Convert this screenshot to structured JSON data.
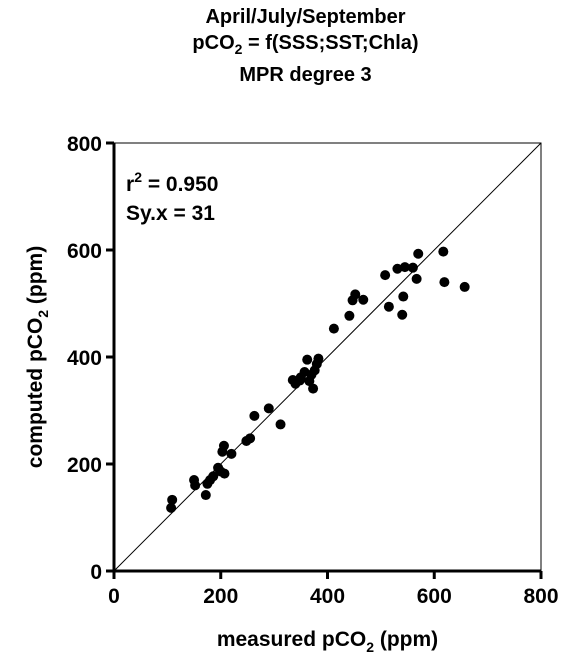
{
  "title": {
    "line1": "April/July/September",
    "line2_prefix": "pCO",
    "line2_sub": "2",
    "line2_suffix": " = f(SSS;SST;Chla)",
    "line3": "MPR degree 3"
  },
  "annotations": {
    "r2_prefix": "r",
    "r2_sup": "2",
    "r2_value": " = 0.950",
    "syx": "Sy.x = 31"
  },
  "chart_data": {
    "type": "scatter",
    "xlabel": {
      "prefix": "measured pCO",
      "sub": "2",
      "suffix": " (ppm)"
    },
    "ylabel": {
      "prefix": "computed pCO",
      "sub": "2",
      "suffix": " (ppm)"
    },
    "xlim": [
      0,
      800
    ],
    "ylim": [
      0,
      800
    ],
    "xticks": [
      0,
      200,
      400,
      600,
      800
    ],
    "yticks": [
      0,
      200,
      400,
      600,
      800
    ],
    "identity_line": true,
    "marker_color": "#000000",
    "points": [
      {
        "x": 107,
        "y": 118
      },
      {
        "x": 109,
        "y": 133
      },
      {
        "x": 150,
        "y": 170
      },
      {
        "x": 152,
        "y": 160
      },
      {
        "x": 172,
        "y": 142
      },
      {
        "x": 175,
        "y": 163
      },
      {
        "x": 180,
        "y": 170
      },
      {
        "x": 186,
        "y": 177
      },
      {
        "x": 195,
        "y": 193
      },
      {
        "x": 200,
        "y": 186
      },
      {
        "x": 203,
        "y": 223
      },
      {
        "x": 206,
        "y": 234
      },
      {
        "x": 207,
        "y": 182
      },
      {
        "x": 220,
        "y": 219
      },
      {
        "x": 248,
        "y": 243
      },
      {
        "x": 255,
        "y": 248
      },
      {
        "x": 263,
        "y": 290
      },
      {
        "x": 290,
        "y": 304
      },
      {
        "x": 312,
        "y": 274
      },
      {
        "x": 335,
        "y": 357
      },
      {
        "x": 340,
        "y": 350
      },
      {
        "x": 348,
        "y": 356
      },
      {
        "x": 350,
        "y": 362
      },
      {
        "x": 357,
        "y": 372
      },
      {
        "x": 362,
        "y": 395
      },
      {
        "x": 366,
        "y": 355
      },
      {
        "x": 370,
        "y": 367
      },
      {
        "x": 373,
        "y": 341
      },
      {
        "x": 376,
        "y": 375
      },
      {
        "x": 380,
        "y": 387
      },
      {
        "x": 383,
        "y": 397
      },
      {
        "x": 412,
        "y": 453
      },
      {
        "x": 441,
        "y": 477
      },
      {
        "x": 447,
        "y": 506
      },
      {
        "x": 452,
        "y": 517
      },
      {
        "x": 467,
        "y": 507
      },
      {
        "x": 508,
        "y": 553
      },
      {
        "x": 515,
        "y": 494
      },
      {
        "x": 531,
        "y": 565
      },
      {
        "x": 540,
        "y": 479
      },
      {
        "x": 542,
        "y": 513
      },
      {
        "x": 545,
        "y": 568
      },
      {
        "x": 560,
        "y": 567
      },
      {
        "x": 567,
        "y": 546
      },
      {
        "x": 570,
        "y": 593
      },
      {
        "x": 617,
        "y": 597
      },
      {
        "x": 619,
        "y": 540
      },
      {
        "x": 657,
        "y": 531
      }
    ]
  }
}
